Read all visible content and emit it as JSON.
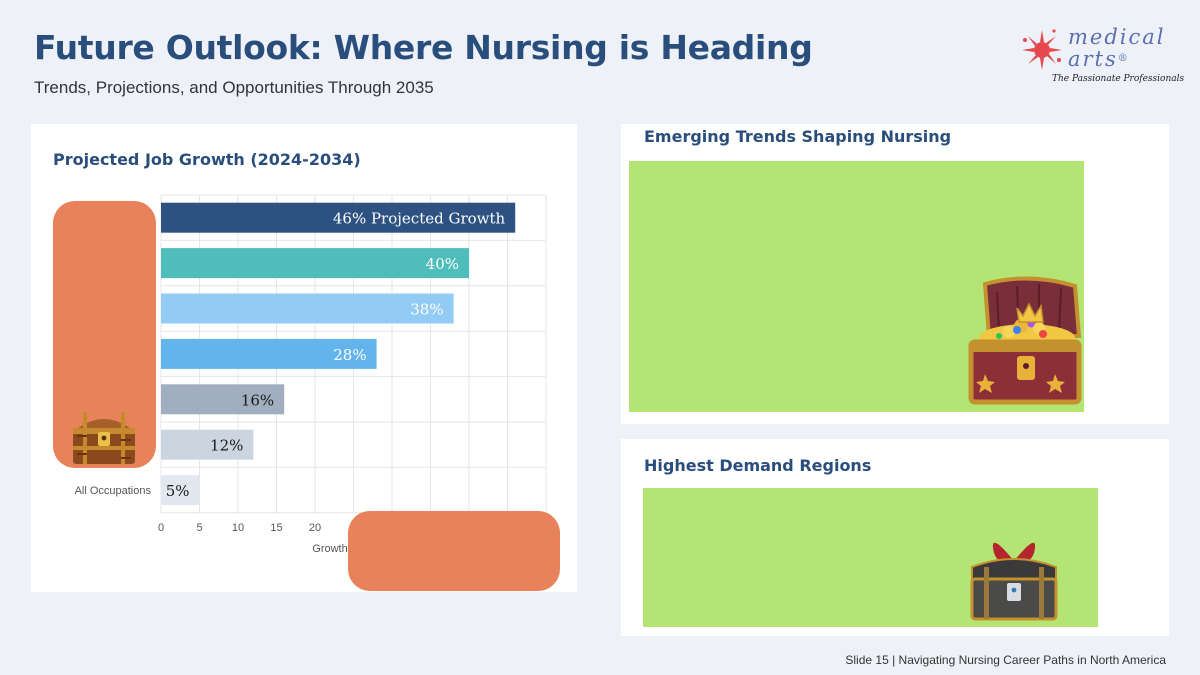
{
  "header": {
    "title": "Future Outlook: Where Nursing is Heading",
    "subtitle": "Trends, Projections, and Opportunities Through 2035"
  },
  "logo": {
    "line1": "medical",
    "line2": "arts",
    "registered": "®",
    "tagline": "The Passionate Professionals",
    "icon": "splash-sun-icon"
  },
  "job_growth_panel": {
    "title": "Projected Job Growth (2024-2034)"
  },
  "chart_data": {
    "type": "bar",
    "orientation": "horizontal",
    "categories": [
      "",
      "",
      "",
      "",
      "",
      "",
      "All Occupations"
    ],
    "values": [
      46,
      40,
      38,
      28,
      16,
      12,
      5
    ],
    "data_labels": [
      "46% Projected Growth",
      "40%",
      "38%",
      "28%",
      "16%",
      "12%",
      "5%"
    ],
    "colors": [
      "#2d5282",
      "#4fbdb9",
      "#92cbf3",
      "#63b3ed",
      "#a0aec0",
      "#cbd5e0",
      "#e2e8f0"
    ],
    "label_colors": [
      "#ffffff",
      "#ffffff",
      "#ffffff",
      "#ffffff",
      "#1a1a1a",
      "#1a1a1a",
      "#1a1a1a"
    ],
    "x_ticks": [
      0,
      5,
      10,
      15,
      20
    ],
    "xlim": [
      0,
      50
    ],
    "xlabel": "Growth",
    "grid": true
  },
  "trends_panel": {
    "title": "Emerging Trends Shaping Nursing",
    "fill_color": "#b3e474"
  },
  "regions_panel": {
    "title": "Highest Demand Regions",
    "fill_color": "#b3e474"
  },
  "overlay_color": "#e8825a",
  "icons": [
    "treasure-chest-icon",
    "open-treasure-chest-icon",
    "gift-treasure-chest-icon"
  ],
  "footer": {
    "text": "Slide 15 | Navigating Nursing Career Paths in North America"
  }
}
